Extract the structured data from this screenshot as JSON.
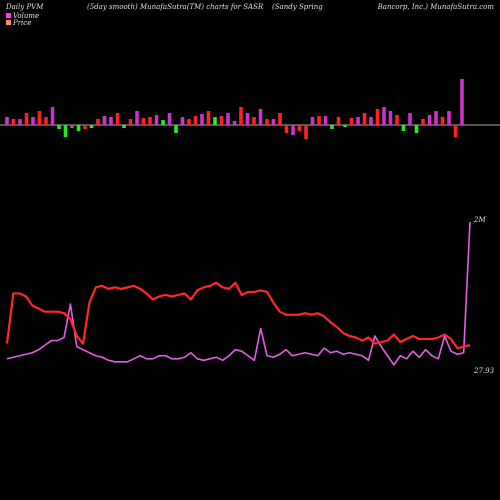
{
  "header": {
    "left": "Daily PVM",
    "center_left": "(5day smooth) MunafaSutra(TM) charts for SASR",
    "center_right": "(Sandy Spring",
    "right": "Bancorp, Inc.) MunafaSutra.com"
  },
  "legend": [
    {
      "label": "Volume",
      "color": "#ff33ff"
    },
    {
      "label": "Price",
      "color": "#ff8c66"
    }
  ],
  "chart_data": [
    {
      "type": "bar",
      "title": "Volume",
      "colors": {
        "magenta": "#cc33cc",
        "red": "#ff2222",
        "green": "#22ee22"
      },
      "values": [
        8,
        6,
        6,
        12,
        8,
        14,
        8,
        18,
        -4,
        -12,
        -3,
        -6,
        -4,
        -3,
        6,
        9,
        8,
        12,
        -3,
        6,
        14,
        7,
        8,
        10,
        5,
        12,
        -8,
        8,
        6,
        9,
        11,
        14,
        8,
        9,
        12,
        4,
        18,
        12,
        8,
        16,
        6,
        6,
        12,
        -8,
        -10,
        -6,
        -14,
        8,
        9,
        9,
        -4,
        8,
        -2,
        7,
        8,
        12,
        8,
        16,
        18,
        14,
        10,
        -6,
        12,
        -8,
        6,
        10,
        14,
        8,
        14,
        -12,
        46
      ],
      "colors_per_bar": [
        "m",
        "r",
        "m",
        "r",
        "m",
        "r",
        "r",
        "m",
        "g",
        "g",
        "m",
        "g",
        "r",
        "g",
        "r",
        "m",
        "m",
        "r",
        "g",
        "r",
        "m",
        "r",
        "r",
        "m",
        "g",
        "m",
        "g",
        "m",
        "r",
        "r",
        "m",
        "r",
        "g",
        "r",
        "m",
        "m",
        "r",
        "m",
        "r",
        "m",
        "r",
        "m",
        "r",
        "r",
        "m",
        "r",
        "r",
        "m",
        "r",
        "m",
        "g",
        "r",
        "g",
        "r",
        "m",
        "r",
        "m",
        "r",
        "m",
        "m",
        "r",
        "g",
        "m",
        "g",
        "r",
        "m",
        "m",
        "r",
        "m",
        "r",
        "m"
      ]
    },
    {
      "type": "line",
      "title": "Volume & Price",
      "annotations": [
        {
          "text": "2M",
          "series": "Volume"
        },
        {
          "text": "27.93",
          "series": "Price"
        }
      ],
      "series": [
        {
          "name": "Volume",
          "color": "#e060e0",
          "values": [
            0.1,
            0.11,
            0.12,
            0.13,
            0.14,
            0.16,
            0.19,
            0.22,
            0.22,
            0.24,
            0.46,
            0.18,
            0.16,
            0.14,
            0.12,
            0.11,
            0.09,
            0.08,
            0.08,
            0.08,
            0.1,
            0.12,
            0.1,
            0.1,
            0.12,
            0.12,
            0.1,
            0.1,
            0.11,
            0.14,
            0.1,
            0.09,
            0.1,
            0.11,
            0.09,
            0.12,
            0.16,
            0.15,
            0.12,
            0.09,
            0.3,
            0.12,
            0.11,
            0.13,
            0.16,
            0.12,
            0.13,
            0.14,
            0.13,
            0.12,
            0.17,
            0.14,
            0.15,
            0.13,
            0.14,
            0.13,
            0.12,
            0.09,
            0.25,
            0.18,
            0.12,
            0.06,
            0.12,
            0.1,
            0.15,
            0.11,
            0.16,
            0.12,
            0.1,
            0.25,
            0.15,
            0.13,
            0.14,
            1.0
          ]
        },
        {
          "name": "Price",
          "color": "#ff2828",
          "values": [
            0.2,
            0.53,
            0.53,
            0.51,
            0.45,
            0.43,
            0.41,
            0.41,
            0.41,
            0.4,
            0.36,
            0.25,
            0.2,
            0.47,
            0.57,
            0.58,
            0.56,
            0.57,
            0.56,
            0.57,
            0.58,
            0.56,
            0.53,
            0.49,
            0.51,
            0.52,
            0.51,
            0.52,
            0.53,
            0.49,
            0.55,
            0.57,
            0.58,
            0.6,
            0.57,
            0.56,
            0.6,
            0.52,
            0.54,
            0.54,
            0.55,
            0.54,
            0.47,
            0.41,
            0.39,
            0.39,
            0.39,
            0.4,
            0.39,
            0.4,
            0.38,
            0.34,
            0.31,
            0.27,
            0.25,
            0.24,
            0.22,
            0.24,
            0.2,
            0.21,
            0.22,
            0.26,
            0.21,
            0.23,
            0.25,
            0.23,
            0.23,
            0.23,
            0.24,
            0.26,
            0.23,
            0.17,
            0.18,
            0.19
          ]
        }
      ]
    }
  ]
}
